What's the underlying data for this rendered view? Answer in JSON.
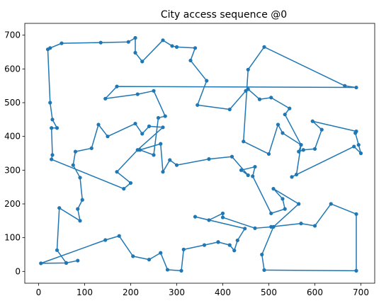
{
  "chart_data": {
    "type": "line",
    "title": "City access sequence @0",
    "xlabel": "",
    "ylabel": "",
    "xlim": [
      -30,
      730
    ],
    "ylim": [
      -35,
      735
    ],
    "xticks": [
      0,
      100,
      200,
      300,
      400,
      500,
      600,
      700
    ],
    "yticks": [
      0,
      100,
      200,
      300,
      400,
      500,
      600,
      700
    ],
    "grid": false,
    "series": [
      {
        "color": "#1f77b4",
        "marker": "circle",
        "points": [
          [
            390,
            87
          ],
          [
            415,
            78
          ],
          [
            425,
            62
          ],
          [
            432,
            92
          ],
          [
            448,
            127
          ],
          [
            340,
            162
          ],
          [
            370,
            152
          ],
          [
            400,
            172
          ],
          [
            400,
            160
          ],
          [
            470,
            128
          ],
          [
            505,
            132
          ],
          [
            570,
            142
          ],
          [
            600,
            135
          ],
          [
            635,
            200
          ],
          [
            690,
            170
          ],
          [
            690,
            2
          ],
          [
            490,
            4
          ],
          [
            485,
            50
          ],
          [
            510,
            132
          ],
          [
            565,
            200
          ],
          [
            510,
            245
          ],
          [
            530,
            215
          ],
          [
            535,
            185
          ],
          [
            505,
            172
          ],
          [
            465,
            282
          ],
          [
            470,
            310
          ],
          [
            440,
            300
          ],
          [
            455,
            285
          ],
          [
            420,
            340
          ],
          [
            370,
            333
          ],
          [
            300,
            315
          ],
          [
            285,
            330
          ],
          [
            270,
            295
          ],
          [
            265,
            378
          ],
          [
            220,
            360
          ],
          [
            250,
            345
          ],
          [
            260,
            455
          ],
          [
            275,
            460
          ],
          [
            250,
            535
          ],
          [
            215,
            525
          ],
          [
            145,
            512
          ],
          [
            170,
            548
          ],
          [
            690,
            545
          ],
          [
            665,
            550
          ],
          [
            490,
            665
          ],
          [
            455,
            598
          ],
          [
            445,
            385
          ],
          [
            500,
            348
          ],
          [
            520,
            435
          ],
          [
            530,
            410
          ],
          [
            570,
            375
          ],
          [
            565,
            355
          ],
          [
            575,
            360
          ],
          [
            600,
            363
          ],
          [
            615,
            420
          ],
          [
            595,
            445
          ],
          [
            690,
            415
          ],
          [
            688,
            410
          ],
          [
            695,
            375
          ],
          [
            700,
            350
          ],
          [
            685,
            370
          ],
          [
            550,
            280
          ],
          [
            560,
            287
          ],
          [
            570,
            375
          ],
          [
            535,
            465
          ],
          [
            545,
            483
          ],
          [
            505,
            515
          ],
          [
            480,
            510
          ],
          [
            455,
            540
          ],
          [
            450,
            535
          ],
          [
            415,
            480
          ],
          [
            345,
            493
          ],
          [
            365,
            565
          ],
          [
            330,
            625
          ],
          [
            340,
            662
          ],
          [
            300,
            665
          ],
          [
            290,
            668
          ],
          [
            270,
            685
          ],
          [
            225,
            622
          ],
          [
            210,
            648
          ],
          [
            210,
            692
          ],
          [
            195,
            680
          ],
          [
            135,
            678
          ],
          [
            50,
            676
          ],
          [
            25,
            662
          ],
          [
            20,
            658
          ],
          [
            25,
            500
          ],
          [
            30,
            450
          ],
          [
            40,
            425
          ],
          [
            28,
            425
          ],
          [
            30,
            345
          ],
          [
            28,
            332
          ],
          [
            185,
            245
          ],
          [
            200,
            262
          ],
          [
            170,
            295
          ],
          [
            215,
            360
          ],
          [
            270,
            427
          ],
          [
            240,
            430
          ],
          [
            225,
            408
          ],
          [
            210,
            438
          ],
          [
            150,
            400
          ],
          [
            130,
            435
          ],
          [
            115,
            365
          ],
          [
            80,
            355
          ],
          [
            75,
            315
          ],
          [
            90,
            278
          ],
          [
            95,
            212
          ],
          [
            85,
            185
          ],
          [
            90,
            150
          ],
          [
            45,
            188
          ],
          [
            40,
            63
          ],
          [
            60,
            25
          ],
          [
            85,
            32
          ],
          [
            60,
            25
          ],
          [
            5,
            24
          ],
          [
            145,
            93
          ],
          [
            175,
            105
          ],
          [
            205,
            45
          ],
          [
            240,
            35
          ],
          [
            265,
            55
          ],
          [
            280,
            5
          ],
          [
            310,
            2
          ],
          [
            315,
            65
          ],
          [
            360,
            78
          ],
          [
            390,
            87
          ]
        ]
      }
    ]
  }
}
